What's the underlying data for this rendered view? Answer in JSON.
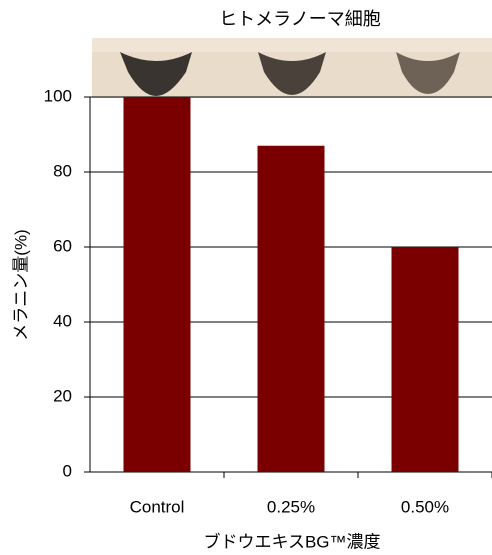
{
  "chart_data": {
    "type": "bar",
    "title": "ヒトメラノーマ細胞",
    "x_label": "ブドウエキスBG™濃度",
    "y_label": "メラニン量(%)",
    "categories": [
      "Control",
      "0.25%",
      "0.50%"
    ],
    "values": [
      100,
      87,
      60
    ],
    "color": "#7a0000",
    "ylim": [
      0,
      100
    ],
    "yticks": [
      0,
      20,
      40,
      60,
      80,
      100
    ],
    "grid": true
  }
}
